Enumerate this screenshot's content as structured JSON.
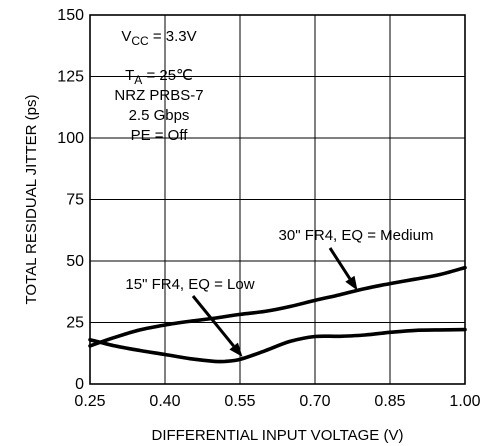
{
  "chart_data": {
    "type": "line",
    "xlabel": "DIFFERENTIAL INPUT VOLTAGE (V)",
    "ylabel": "TOTAL RESIDUAL JITTER (ps)",
    "xlim": [
      0.25,
      1.0
    ],
    "ylim": [
      0,
      150
    ],
    "x_ticks": [
      "0.25",
      "0.40",
      "0.55",
      "0.70",
      "0.85",
      "1.00"
    ],
    "y_ticks": [
      "0",
      "25",
      "50",
      "75",
      "100",
      "125",
      "150"
    ],
    "grid": true,
    "conditions": {
      "vcc": {
        "prefix": "V",
        "sub": "CC",
        "value": " = 3.3V"
      },
      "ta": {
        "prefix": "T",
        "sub": "A",
        "value": " = 25℃"
      },
      "pattern": "NRZ PRBS-7",
      "rate": "2.5 Gbps",
      "pe": "PE = Off"
    },
    "series": [
      {
        "name": "30\" FR4, EQ = Medium",
        "x": [
          0.25,
          0.3,
          0.35,
          0.4,
          0.45,
          0.5,
          0.55,
          0.6,
          0.65,
          0.7,
          0.75,
          0.8,
          0.85,
          0.9,
          0.95,
          1.0
        ],
        "y": [
          15.5,
          19.0,
          22.0,
          24.0,
          25.5,
          26.8,
          28.3,
          29.5,
          31.5,
          34.0,
          36.3,
          38.8,
          40.8,
          42.6,
          44.5,
          47.3
        ]
      },
      {
        "name": "15\" FR4, EQ = Low",
        "x": [
          0.25,
          0.3,
          0.35,
          0.4,
          0.45,
          0.5,
          0.52,
          0.55,
          0.6,
          0.65,
          0.7,
          0.75,
          0.8,
          0.85,
          0.9,
          0.95,
          1.0
        ],
        "y": [
          18.0,
          15.5,
          13.6,
          12.0,
          10.3,
          9.2,
          9.2,
          10.0,
          13.5,
          17.3,
          19.3,
          19.4,
          19.9,
          21.0,
          21.8,
          22.0,
          22.1
        ]
      }
    ],
    "annotations": [
      {
        "text": "30\" FR4, EQ = Medium",
        "series": 0,
        "arrow_to_x": 0.785,
        "arrow_to_y": 38.0
      },
      {
        "text": "15\" FR4, EQ = Low",
        "series": 1,
        "arrow_to_x": 0.555,
        "arrow_to_y": 11.0
      }
    ]
  }
}
